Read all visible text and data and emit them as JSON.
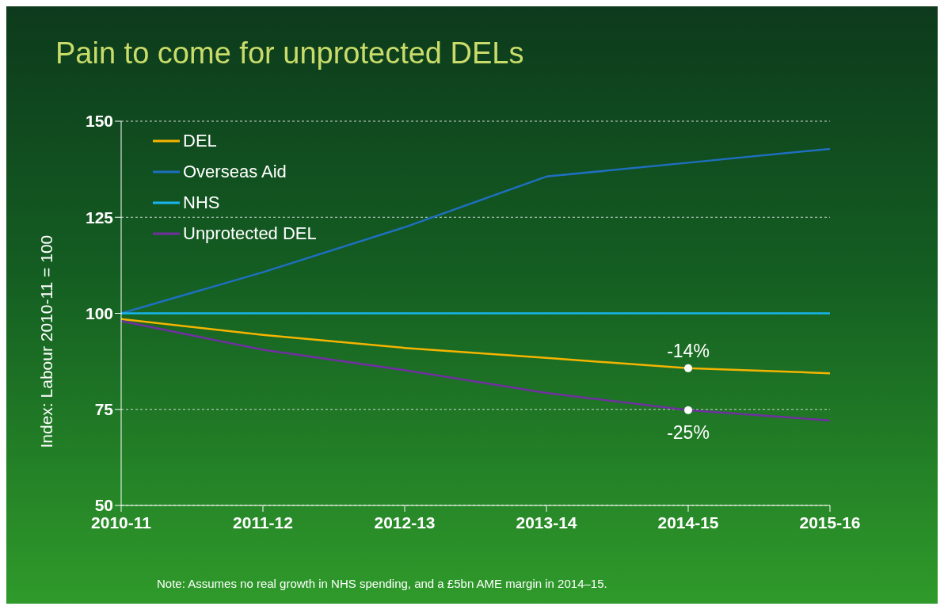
{
  "chart_data": {
    "type": "line",
    "title": "Pain to come for unprotected DELs",
    "ylabel": "Index: Labour 2010-11 = 100",
    "categories": [
      "2010-11",
      "2011-12",
      "2012-13",
      "2013-14",
      "2014-15",
      "2015-16"
    ],
    "series": [
      {
        "name": "DEL",
        "color": "#f5b400",
        "values": [
          98.5,
          94.4,
          91.0,
          88.4,
          85.7,
          84.4
        ]
      },
      {
        "name": "Overseas Aid",
        "color": "#1f6fc0",
        "values": [
          100,
          110.7,
          122.4,
          135.6,
          139.2,
          142.8
        ]
      },
      {
        "name": "NHS",
        "color": "#19b5f0",
        "values": [
          100,
          100,
          100,
          100,
          100,
          100
        ]
      },
      {
        "name": "Unprotected DEL",
        "color": "#7030a0",
        "values": [
          98,
          90.5,
          85.2,
          79.3,
          74.8,
          72.1
        ]
      }
    ],
    "ylim": [
      50,
      150
    ],
    "yticks": [
      50,
      75,
      100,
      125,
      150
    ],
    "grid": "y",
    "legend": "top left",
    "marker": "none",
    "line_style": "solid",
    "annotations": [
      {
        "text": "-14%",
        "x": "2014-15",
        "y": 85.7
      },
      {
        "text": "-25%",
        "x": "2014-15",
        "y": 74.8
      },
      "Note: Assumes no real growth in NHS spending, and a £5bn AME margin in 2014–15."
    ]
  }
}
